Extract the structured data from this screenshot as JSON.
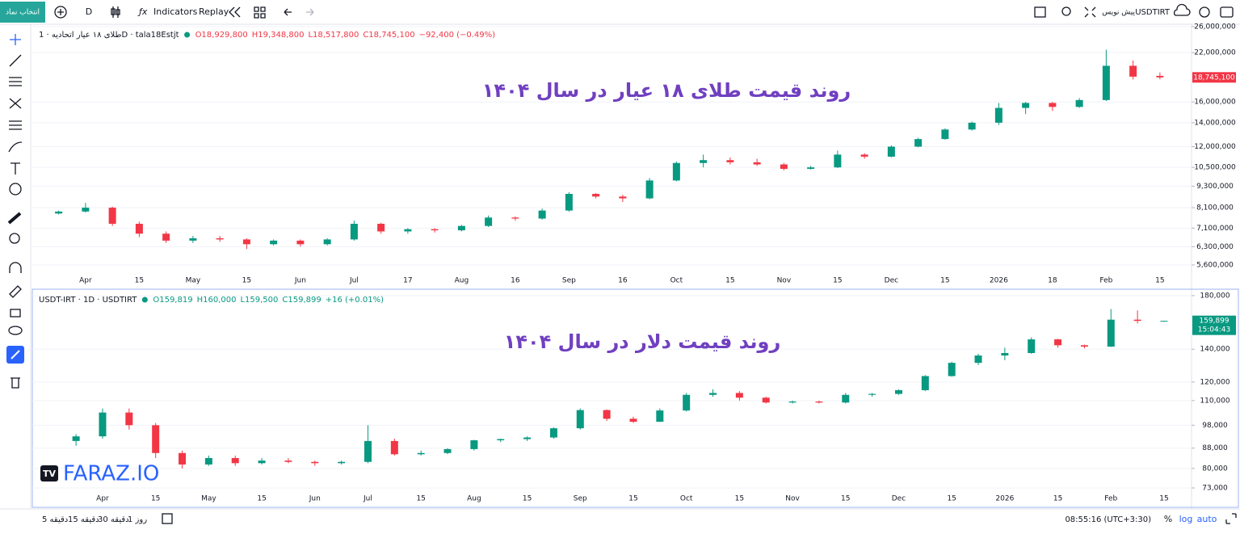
{
  "toolbar": {
    "symbol_button": "انتخاب نماد",
    "interval": "D",
    "indicators": "Indicators",
    "replay": "Replay",
    "symbol": "USDTIRT",
    "draft": "پیش نویس"
  },
  "chart_data": [
    {
      "type": "candlestick",
      "legend_title": "طلای ۱۸ عیار اتحادیه · 1D · tala18Estjt",
      "legend_values": [
        "O18,929,800",
        "H19,348,800",
        "L18,517,800",
        "C18,745,100",
        "−92,400 (−0.49%)"
      ],
      "annotation": "روند قیمت طلای ۱۸ عیار در سال ۱۴۰۴",
      "categories": [
        null,
        "Apr",
        null,
        "15",
        null,
        "May",
        null,
        "15",
        null,
        "Jun",
        null,
        "Jul",
        null,
        "17",
        null,
        "Aug",
        null,
        "16",
        null,
        "Sep",
        null,
        "16",
        null,
        "Oct",
        null,
        "15",
        null,
        "Nov",
        null,
        "15",
        null,
        "Dec",
        null,
        "15",
        null,
        "2026",
        null,
        "18",
        null,
        "Feb",
        null,
        "15"
      ],
      "open": [
        7800000,
        7900000,
        8100000,
        7300000,
        6850000,
        6550000,
        6650000,
        6600000,
        6400000,
        6550000,
        6400000,
        6600000,
        7300000,
        6950000,
        7050000,
        7000000,
        7200000,
        7600000,
        7550000,
        7950000,
        8850000,
        8700000,
        8600000,
        9650000,
        10800000,
        11000000,
        10850000,
        10700000,
        10400000,
        10500000,
        11400000,
        11250000,
        12000000,
        12600000,
        13400000,
        14000000,
        15400000,
        15900000,
        15500000,
        16200000,
        20200000,
        18929800
      ],
      "high": [
        7950000,
        8350000,
        8150000,
        7400000,
        6950000,
        6750000,
        6750000,
        6650000,
        6600000,
        6600000,
        6650000,
        7450000,
        7350000,
        7100000,
        7100000,
        7250000,
        7700000,
        7650000,
        8050000,
        8950000,
        8900000,
        8800000,
        9800000,
        10900000,
        11400000,
        11200000,
        11100000,
        10800000,
        10600000,
        11700000,
        11500000,
        12100000,
        12700000,
        13500000,
        14100000,
        15900000,
        16000000,
        16000000,
        16400000,
        22400000,
        20900000,
        19348800
      ],
      "low": [
        7750000,
        7850000,
        7200000,
        6700000,
        6450000,
        6450000,
        6500000,
        6200000,
        6350000,
        6300000,
        6350000,
        6550000,
        6850000,
        6850000,
        6900000,
        6950000,
        7150000,
        7450000,
        7500000,
        7900000,
        8600000,
        8400000,
        8550000,
        9600000,
        10500000,
        10700000,
        10600000,
        10300000,
        10350000,
        10450000,
        11100000,
        11200000,
        11950000,
        12550000,
        13300000,
        13800000,
        14800000,
        15100000,
        15400000,
        16100000,
        18500000,
        18517800
      ],
      "close": [
        7900000,
        8100000,
        7300000,
        6850000,
        6550000,
        6650000,
        6600000,
        6400000,
        6550000,
        6400000,
        6600000,
        7300000,
        6950000,
        7050000,
        7000000,
        7200000,
        7600000,
        7550000,
        7950000,
        8850000,
        8700000,
        8600000,
        9650000,
        10800000,
        11000000,
        10850000,
        10700000,
        10400000,
        10500000,
        11400000,
        11250000,
        12000000,
        12600000,
        13400000,
        14000000,
        15400000,
        15900000,
        15500000,
        16200000,
        20200000,
        18837500,
        18745100
      ],
      "up_color": "#089981",
      "down_color": "#f23645",
      "log_scale": true,
      "grid": true,
      "ylim": [
        5260000,
        26400000
      ],
      "yticks": [
        {
          "value": 5600000,
          "label": "5,600,000"
        },
        {
          "value": 6300000,
          "label": "6,300,000"
        },
        {
          "value": 7100000,
          "label": "7,100,000"
        },
        {
          "value": 8100000,
          "label": "8,100,000"
        },
        {
          "value": 9300000,
          "label": "9,300,000"
        },
        {
          "value": 10500000,
          "label": "10,500,000"
        },
        {
          "value": 12000000,
          "label": "12,000,000"
        },
        {
          "value": 14000000,
          "label": "14,000,000"
        },
        {
          "value": 16000000,
          "label": "16,000,000"
        },
        {
          "value": 22000000,
          "label": "22,000,000"
        },
        {
          "value": 26000000,
          "label": "26,000,000"
        }
      ],
      "last_price_label": "18,745,100"
    },
    {
      "type": "candlestick",
      "legend_title": "USDT-IRT · 1D · USDTIRT",
      "legend_values": [
        "O159,819",
        "H160,000",
        "L159,500",
        "C159,899",
        "+16 (+0.01%)"
      ],
      "annotation": "روند قیمت دلار در سال ۱۴۰۴",
      "categories": [
        null,
        "Apr",
        null,
        "15",
        null,
        "May",
        null,
        "15",
        null,
        "Jun",
        null,
        "Jul",
        null,
        "15",
        null,
        "Aug",
        null,
        "15",
        null,
        "Sep",
        null,
        "15",
        null,
        "Oct",
        null,
        "15",
        null,
        "Nov",
        null,
        "15",
        null,
        "Dec",
        null,
        "15",
        null,
        "2026",
        null,
        "15",
        null,
        "Feb",
        null,
        "15"
      ],
      "open": [
        91000,
        93000,
        104000,
        98000,
        86000,
        81500,
        84000,
        82000,
        83000,
        82500,
        82000,
        82500,
        91000,
        85500,
        86000,
        87600,
        91300,
        91800,
        92500,
        96600,
        105200,
        101000,
        99600,
        105000,
        113000,
        114000,
        111500,
        109000,
        109500,
        109000,
        113000,
        113500,
        115500,
        123400,
        131300,
        135900,
        137500,
        146600,
        142600,
        141700,
        160800,
        159819
      ],
      "high": [
        94000,
        106000,
        106000,
        99000,
        87000,
        85000,
        85000,
        84000,
        84000,
        83000,
        83000,
        98000,
        92000,
        87000,
        88000,
        91500,
        92000,
        93000,
        97000,
        106000,
        105500,
        102000,
        106000,
        114000,
        116000,
        115000,
        112000,
        110000,
        110000,
        114000,
        114000,
        116000,
        124000,
        132000,
        137000,
        141000,
        148000,
        147000,
        143000,
        169000,
        168000,
        160000
      ],
      "low": [
        89000,
        92000,
        96000,
        84000,
        80000,
        81000,
        81000,
        81500,
        82000,
        81000,
        81500,
        82000,
        85000,
        85000,
        85500,
        87000,
        90500,
        91000,
        92000,
        96000,
        100000,
        99000,
        99500,
        104500,
        112000,
        110000,
        108500,
        108500,
        108500,
        108500,
        112000,
        113000,
        115000,
        123000,
        130000,
        133000,
        137000,
        141000,
        140500,
        141500,
        158000,
        159500
      ],
      "close": [
        93000,
        104000,
        98000,
        86000,
        81500,
        84000,
        82000,
        83000,
        82500,
        82000,
        82500,
        91000,
        85500,
        86000,
        87600,
        91300,
        91800,
        92500,
        96600,
        105200,
        101000,
        99600,
        105000,
        113000,
        114000,
        111500,
        109000,
        109500,
        109000,
        113000,
        113500,
        115500,
        123400,
        131300,
        135900,
        137500,
        146600,
        142600,
        141700,
        160800,
        159883,
        159899
      ],
      "up_color": "#089981",
      "down_color": "#f23645",
      "log_scale": true,
      "grid": true,
      "ylim": [
        71360,
        184100
      ],
      "yticks": [
        {
          "value": 73000,
          "label": "73,000"
        },
        {
          "value": 80000,
          "label": "80,000"
        },
        {
          "value": 88000,
          "label": "88,000"
        },
        {
          "value": 98000,
          "label": "98,000"
        },
        {
          "value": 110000,
          "label": "110,000"
        },
        {
          "value": 120000,
          "label": "120,000"
        },
        {
          "value": 140000,
          "label": "140,000"
        },
        {
          "value": 180000,
          "label": "180,000"
        }
      ],
      "last_price_label": "159,899",
      "countdown": "15:04:43"
    }
  ],
  "watermark": "FARAZ.IO",
  "bottom_bar": {
    "intervals": [
      "5 دقیقه",
      "15 دقیقه",
      "30 دقیقه",
      "1 روز"
    ],
    "time": "08:55:16 (UTC+3:30)",
    "percent": "%",
    "log": "log",
    "auto": "auto"
  }
}
